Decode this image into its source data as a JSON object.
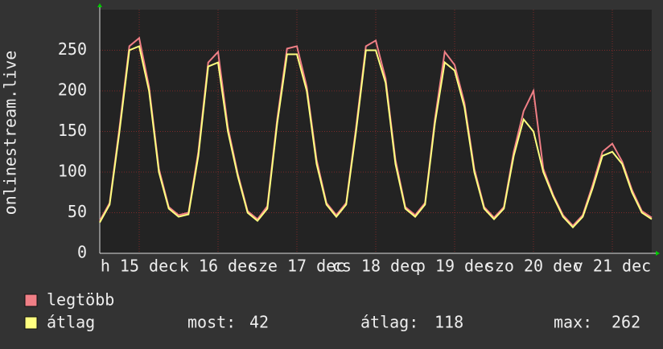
{
  "chart_data": {
    "type": "line",
    "y_label": "onlinestream.live",
    "x": [
      0,
      3,
      6,
      9,
      12,
      15,
      18,
      21,
      24,
      27,
      30,
      33,
      36,
      39,
      42,
      45,
      48,
      51,
      54,
      57,
      60,
      63,
      66,
      69,
      72,
      75,
      78,
      81,
      84,
      87,
      90,
      93,
      96,
      99,
      102,
      105,
      108,
      111,
      114,
      117,
      120,
      123,
      126,
      129,
      132,
      135,
      138,
      141,
      144,
      147,
      150,
      153,
      156,
      159,
      162,
      165,
      168
    ],
    "xlim": [
      0,
      168
    ],
    "xticks": [
      {
        "value": 12,
        "label": "h 15 dec"
      },
      {
        "value": 36,
        "label": "k 16 dec"
      },
      {
        "value": 60,
        "label": "sze 17 dec"
      },
      {
        "value": 84,
        "label": "cs 18 dec"
      },
      {
        "value": 108,
        "label": "p 19 dec"
      },
      {
        "value": 132,
        "label": "szo 20 dec"
      },
      {
        "value": 156,
        "label": "v 21 dec"
      }
    ],
    "ylim": [
      0,
      300
    ],
    "yticks": [
      0,
      50,
      100,
      150,
      200,
      250
    ],
    "grid": true,
    "series": [
      {
        "name": "legtöbb",
        "color": "#f07f86",
        "values": [
          40,
          62,
          155,
          255,
          265,
          205,
          104,
          57,
          47,
          50,
          125,
          235,
          248,
          155,
          98,
          52,
          42,
          58,
          165,
          252,
          255,
          205,
          115,
          62,
          47,
          62,
          155,
          255,
          262,
          215,
          115,
          57,
          47,
          62,
          165,
          248,
          232,
          185,
          104,
          57,
          44,
          57,
          125,
          175,
          200,
          104,
          72,
          47,
          34,
          47,
          84,
          125,
          135,
          113,
          78,
          52,
          44
        ]
      },
      {
        "name": "átlag",
        "color": "#ffff80",
        "values": [
          38,
          60,
          150,
          250,
          255,
          200,
          100,
          55,
          45,
          48,
          120,
          230,
          235,
          150,
          95,
          50,
          40,
          55,
          160,
          245,
          245,
          200,
          110,
          60,
          45,
          60,
          150,
          250,
          250,
          210,
          110,
          55,
          45,
          60,
          160,
          235,
          225,
          180,
          100,
          55,
          42,
          55,
          120,
          165,
          150,
          100,
          70,
          45,
          32,
          45,
          80,
          120,
          125,
          110,
          75,
          50,
          42
        ]
      }
    ],
    "stats": [
      {
        "label": "most:",
        "value": 42
      },
      {
        "label": "átlag:",
        "value": 118
      },
      {
        "label": "max:",
        "value": 262
      }
    ]
  }
}
